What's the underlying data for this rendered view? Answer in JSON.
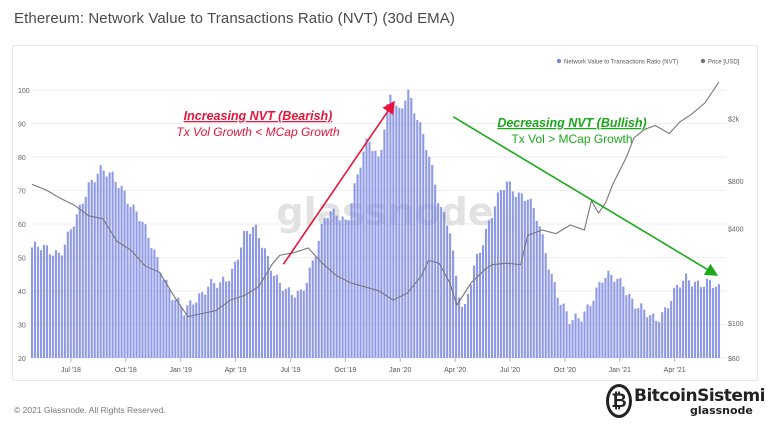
{
  "page": {
    "title": "Ethereum: Network Value to Transactions Ratio (NVT) (30d EMA)",
    "footer": "© 2021 Glassnode. All Rights Reserved."
  },
  "watermark": "glassnode",
  "brand": {
    "name": "BitcoinSistemi",
    "sub": "glassnode",
    "icon": "bitcoin-icon"
  },
  "annotations": {
    "left_title": "Increasing NVT (Bearish)",
    "left_sub": "Tx Vol Growth < MCap Growth",
    "left_color": "#e8143a",
    "right_title": "Decreasing NVT (Bullish)",
    "right_sub": "Tx Vol > MCap Growth",
    "right_color": "#1ba81b"
  },
  "chart_data": {
    "type": "bar",
    "title": "Ethereum: Network Value to Transactions Ratio (NVT) (30d EMA)",
    "legend": {
      "placement": "top-right",
      "entries": [
        {
          "name": "Network Value to Transactions Ratio (NVT)",
          "color": "#7b88e0"
        },
        {
          "name": "Price [USD]",
          "color": "#777777"
        }
      ]
    },
    "x_ticks": [
      "Jul '18",
      "Oct '18",
      "Jan '19",
      "Apr '19",
      "Jul '19",
      "Oct '19",
      "Jan '20",
      "Apr '20",
      "Jul '20",
      "Oct '20",
      "Jan '21",
      "Apr '21"
    ],
    "y_left": {
      "ticks": [
        "20",
        "30",
        "40",
        "50",
        "60",
        "70",
        "80",
        "90",
        "100"
      ],
      "range": [
        20,
        103
      ]
    },
    "y_right": {
      "ticks": [
        "$60",
        "$100",
        "$400",
        "$800",
        "$2k"
      ],
      "scale": "log",
      "range": [
        60,
        3500
      ]
    },
    "grid": true,
    "series": [
      {
        "name": "Network Value to Transactions Ratio (NVT)",
        "kind": "bar",
        "color": "#7b88e0",
        "points": [
          [
            0,
            53
          ],
          [
            0.4,
            52
          ],
          [
            0.8,
            52
          ],
          [
            1.0,
            56
          ],
          [
            1.3,
            62
          ],
          [
            1.6,
            72
          ],
          [
            1.9,
            77
          ],
          [
            2.2,
            74
          ],
          [
            2.6,
            70
          ],
          [
            3.0,
            63
          ],
          [
            3.3,
            55
          ],
          [
            3.6,
            48
          ],
          [
            4.0,
            38
          ],
          [
            4.3,
            33
          ],
          [
            4.6,
            38
          ],
          [
            5.0,
            42
          ],
          [
            5.3,
            41
          ],
          [
            5.6,
            45
          ],
          [
            6.0,
            57
          ],
          [
            6.3,
            58
          ],
          [
            6.6,
            52
          ],
          [
            7.0,
            42
          ],
          [
            7.3,
            38
          ],
          [
            7.6,
            40
          ],
          [
            8.0,
            51
          ],
          [
            8.3,
            62
          ],
          [
            8.6,
            64
          ],
          [
            8.9,
            61
          ],
          [
            9.2,
            74
          ],
          [
            9.5,
            86
          ],
          [
            9.8,
            80
          ],
          [
            10.1,
            98
          ],
          [
            10.4,
            92
          ],
          [
            10.6,
            101
          ],
          [
            10.9,
            92
          ],
          [
            11.2,
            80
          ],
          [
            11.5,
            66
          ],
          [
            11.8,
            60
          ],
          [
            12.0,
            42
          ],
          [
            12.2,
            32
          ],
          [
            12.5,
            48
          ],
          [
            12.8,
            58
          ],
          [
            13.1,
            66
          ],
          [
            13.4,
            72
          ],
          [
            13.7,
            70
          ],
          [
            14.0,
            68
          ],
          [
            14.3,
            60
          ],
          [
            14.6,
            48
          ],
          [
            14.9,
            38
          ],
          [
            15.2,
            30
          ],
          [
            15.5,
            32
          ],
          [
            15.8,
            38
          ],
          [
            16.1,
            43
          ],
          [
            16.4,
            44
          ],
          [
            16.7,
            43
          ],
          [
            17.0,
            36
          ],
          [
            17.3,
            33
          ],
          [
            17.6,
            32
          ],
          [
            17.9,
            35
          ],
          [
            18.2,
            40
          ],
          [
            18.5,
            44
          ],
          [
            18.8,
            43
          ],
          [
            19.1,
            42
          ],
          [
            19.4,
            40
          ]
        ]
      },
      {
        "name": "Price [USD]",
        "kind": "line",
        "color": "#777777",
        "points": [
          [
            0,
            760
          ],
          [
            0.4,
            700
          ],
          [
            0.8,
            620
          ],
          [
            1.2,
            560
          ],
          [
            1.6,
            480
          ],
          [
            2.0,
            460
          ],
          [
            2.4,
            330
          ],
          [
            2.8,
            290
          ],
          [
            3.2,
            230
          ],
          [
            3.6,
            210
          ],
          [
            4.0,
            150
          ],
          [
            4.4,
            110
          ],
          [
            4.8,
            115
          ],
          [
            5.2,
            120
          ],
          [
            5.6,
            140
          ],
          [
            6.0,
            150
          ],
          [
            6.4,
            170
          ],
          [
            6.8,
            240
          ],
          [
            7.0,
            270
          ],
          [
            7.4,
            280
          ],
          [
            7.8,
            300
          ],
          [
            8.2,
            240
          ],
          [
            8.6,
            200
          ],
          [
            9.0,
            180
          ],
          [
            9.4,
            170
          ],
          [
            9.8,
            160
          ],
          [
            10.2,
            140
          ],
          [
            10.6,
            155
          ],
          [
            11.0,
            200
          ],
          [
            11.2,
            250
          ],
          [
            11.5,
            240
          ],
          [
            11.8,
            180
          ],
          [
            12.0,
            130
          ],
          [
            12.4,
            180
          ],
          [
            12.8,
            220
          ],
          [
            13.0,
            235
          ],
          [
            13.4,
            240
          ],
          [
            13.8,
            235
          ],
          [
            14.0,
            360
          ],
          [
            14.4,
            390
          ],
          [
            14.8,
            370
          ],
          [
            15.2,
            420
          ],
          [
            15.6,
            390
          ],
          [
            15.8,
            600
          ],
          [
            16.0,
            500
          ],
          [
            16.2,
            580
          ],
          [
            16.4,
            760
          ],
          [
            16.8,
            1150
          ],
          [
            17.0,
            1500
          ],
          [
            17.3,
            1700
          ],
          [
            17.6,
            1800
          ],
          [
            18.0,
            1600
          ],
          [
            18.3,
            1900
          ],
          [
            18.6,
            2100
          ],
          [
            19.0,
            2500
          ],
          [
            19.4,
            3400
          ]
        ]
      }
    ],
    "trend_arrows": [
      {
        "label": "Increasing NVT (Bearish)",
        "color": "#e8143a",
        "from": [
          7.1,
          48
        ],
        "to": [
          10.2,
          96
        ]
      },
      {
        "label": "Decreasing NVT (Bullish)",
        "color": "#1ba81b",
        "from": [
          11.9,
          92
        ],
        "to": [
          19.3,
          45
        ]
      }
    ]
  }
}
